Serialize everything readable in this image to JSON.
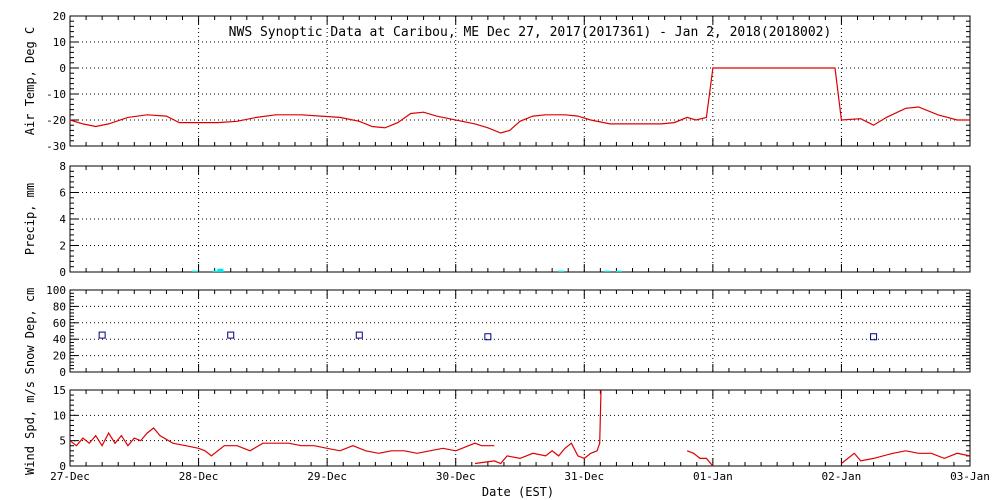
{
  "chart_data": {
    "type": "line",
    "title": "NWS Synoptic Data at Caribou, ME   Dec 27, 2017(2017361) - Jan  2, 2018(2018002)",
    "xlabel": "Date (EST)",
    "x_range": [
      "2017-12-27T00:00",
      "2018-01-03T00:00"
    ],
    "x_ticks": [
      "27-Dec",
      "28-Dec",
      "29-Dec",
      "30-Dec",
      "31-Dec",
      "01-Jan",
      "02-Jan",
      "03-Jan"
    ],
    "grid": "dotted vertical lines at each day",
    "panels": [
      {
        "name": "air_temp",
        "ylabel": "Air Temp, Deg C",
        "type": "line",
        "ylim": [
          -30,
          20
        ],
        "yticks": [
          -30,
          -20,
          -10,
          0,
          10,
          20
        ],
        "color": "#dd0000",
        "points": [
          [
            0.0,
            -20.0
          ],
          [
            0.1,
            -21.5
          ],
          [
            0.2,
            -22.5
          ],
          [
            0.3,
            -21.5
          ],
          [
            0.45,
            -19.0
          ],
          [
            0.6,
            -18.0
          ],
          [
            0.75,
            -18.5
          ],
          [
            0.85,
            -21.0
          ],
          [
            1.0,
            -21.0
          ],
          [
            1.15,
            -21.0
          ],
          [
            1.3,
            -20.5
          ],
          [
            1.45,
            -19.0
          ],
          [
            1.6,
            -18.0
          ],
          [
            1.8,
            -18.0
          ],
          [
            1.95,
            -18.5
          ],
          [
            2.1,
            -19.0
          ],
          [
            2.25,
            -20.5
          ],
          [
            2.35,
            -22.5
          ],
          [
            2.45,
            -23.0
          ],
          [
            2.55,
            -21.0
          ],
          [
            2.65,
            -17.5
          ],
          [
            2.75,
            -17.0
          ],
          [
            2.85,
            -18.5
          ],
          [
            2.95,
            -19.5
          ],
          [
            3.05,
            -20.5
          ],
          [
            3.15,
            -21.5
          ],
          [
            3.25,
            -23.0
          ],
          [
            3.35,
            -25.0
          ],
          [
            3.42,
            -24.0
          ],
          [
            3.5,
            -20.5
          ],
          [
            3.6,
            -18.5
          ],
          [
            3.7,
            -18.0
          ],
          [
            3.85,
            -18.0
          ],
          [
            3.95,
            -18.5
          ],
          [
            4.05,
            -20.0
          ],
          [
            4.2,
            -21.5
          ],
          [
            4.4,
            -21.5
          ],
          [
            4.6,
            -21.5
          ],
          [
            4.7,
            -21.0
          ],
          [
            4.8,
            -19.0
          ],
          [
            4.87,
            -20.0
          ],
          [
            4.95,
            -19.0
          ],
          [
            5.0,
            0.0
          ],
          [
            5.95,
            0.0
          ],
          [
            6.0,
            -20.0
          ],
          [
            6.15,
            -19.5
          ],
          [
            6.25,
            -22.0
          ],
          [
            6.35,
            -19.0
          ],
          [
            6.5,
            -15.5
          ],
          [
            6.6,
            -15.0
          ],
          [
            6.75,
            -18.0
          ],
          [
            6.9,
            -20.0
          ],
          [
            7.0,
            -20.0
          ]
        ]
      },
      {
        "name": "precip",
        "ylabel": "Precip, mm",
        "type": "bar",
        "ylim": [
          0,
          8
        ],
        "yticks": [
          0,
          2,
          4,
          6,
          8
        ],
        "color": "#00e5e5",
        "bars": [
          {
            "x": 0.97,
            "value": 0.1
          },
          {
            "x": 1.13,
            "value": 0.1
          },
          {
            "x": 1.17,
            "value": 0.25
          },
          {
            "x": 3.82,
            "value": 0.1
          },
          {
            "x": 4.18,
            "value": 0.1
          },
          {
            "x": 4.27,
            "value": 0.1
          }
        ]
      },
      {
        "name": "snow_depth",
        "ylabel": "Snow Dep, cm",
        "type": "scatter",
        "ylim": [
          0,
          100
        ],
        "yticks": [
          0,
          20,
          40,
          60,
          80,
          100
        ],
        "color": "#000080",
        "points": [
          [
            0.25,
            45
          ],
          [
            1.25,
            45
          ],
          [
            2.25,
            45
          ],
          [
            3.25,
            43
          ],
          [
            6.25,
            43
          ]
        ]
      },
      {
        "name": "wind_speed",
        "ylabel": "Wind Spd, m/s",
        "type": "line",
        "ylim": [
          0,
          15
        ],
        "yticks": [
          0,
          5,
          10,
          15
        ],
        "color": "#dd0000",
        "segments": [
          [
            [
              0.0,
              5.0
            ],
            [
              0.05,
              4.0
            ],
            [
              0.1,
              5.5
            ],
            [
              0.15,
              4.5
            ],
            [
              0.2,
              6.0
            ],
            [
              0.25,
              4.0
            ],
            [
              0.3,
              6.5
            ],
            [
              0.35,
              4.5
            ],
            [
              0.4,
              6.0
            ],
            [
              0.45,
              4.0
            ],
            [
              0.5,
              5.5
            ],
            [
              0.55,
              5.0
            ],
            [
              0.6,
              6.5
            ],
            [
              0.65,
              7.5
            ],
            [
              0.7,
              6.0
            ],
            [
              0.8,
              4.5
            ],
            [
              0.9,
              4.0
            ],
            [
              1.0,
              3.5
            ],
            [
              1.05,
              3.0
            ],
            [
              1.1,
              2.0
            ],
            [
              1.2,
              4.0
            ],
            [
              1.3,
              4.0
            ],
            [
              1.4,
              3.0
            ],
            [
              1.5,
              4.5
            ],
            [
              1.6,
              4.5
            ],
            [
              1.7,
              4.5
            ],
            [
              1.8,
              4.0
            ],
            [
              1.9,
              4.0
            ],
            [
              2.0,
              3.5
            ],
            [
              2.1,
              3.0
            ],
            [
              2.2,
              4.0
            ],
            [
              2.3,
              3.0
            ],
            [
              2.4,
              2.5
            ],
            [
              2.5,
              3.0
            ],
            [
              2.6,
              3.0
            ],
            [
              2.7,
              2.5
            ],
            [
              2.8,
              3.0
            ],
            [
              2.9,
              3.5
            ],
            [
              3.0,
              3.0
            ],
            [
              3.05,
              3.5
            ],
            [
              3.1,
              4.0
            ],
            [
              3.15,
              4.5
            ],
            [
              3.2,
              4.0
            ],
            [
              3.3,
              4.0
            ]
          ],
          [
            [
              3.15,
              0.5
            ],
            [
              3.3,
              1.0
            ],
            [
              3.35,
              0.5
            ],
            [
              3.4,
              2.0
            ],
            [
              3.5,
              1.5
            ],
            [
              3.6,
              2.5
            ],
            [
              3.7,
              2.0
            ],
            [
              3.75,
              3.0
            ],
            [
              3.8,
              2.0
            ],
            [
              3.85,
              3.5
            ],
            [
              3.9,
              4.5
            ],
            [
              3.95,
              2.0
            ],
            [
              4.0,
              1.5
            ],
            [
              4.05,
              2.5
            ],
            [
              4.1,
              3.0
            ],
            [
              4.12,
              4.5
            ],
            [
              4.13,
              15.0
            ]
          ],
          [
            [
              4.8,
              3.0
            ],
            [
              4.85,
              2.5
            ],
            [
              4.9,
              1.5
            ],
            [
              4.95,
              1.5
            ],
            [
              5.0,
              0.0
            ]
          ],
          [
            [
              6.0,
              0.5
            ],
            [
              6.1,
              2.5
            ],
            [
              6.15,
              1.0
            ],
            [
              6.25,
              1.5
            ],
            [
              6.4,
              2.5
            ],
            [
              6.5,
              3.0
            ],
            [
              6.6,
              2.5
            ],
            [
              6.7,
              2.5
            ],
            [
              6.8,
              1.5
            ],
            [
              6.9,
              2.5
            ],
            [
              7.0,
              2.0
            ]
          ]
        ]
      }
    ]
  }
}
